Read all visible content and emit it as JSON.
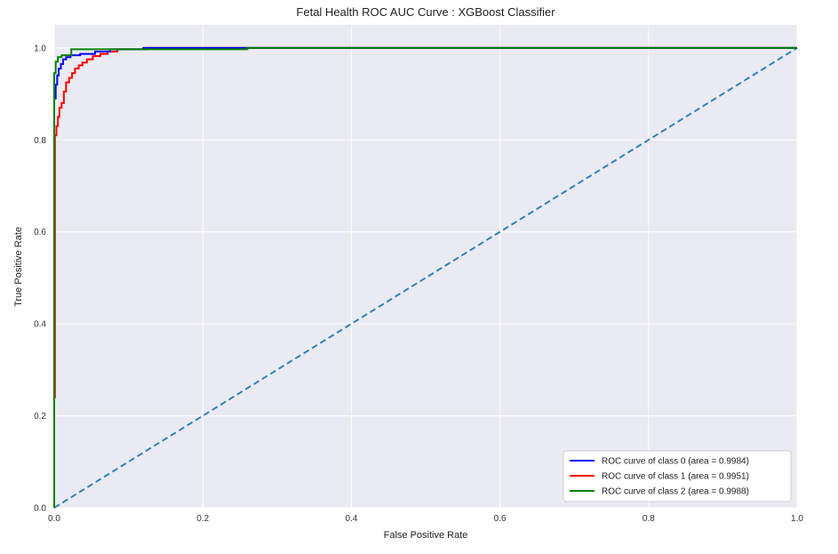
{
  "chart_data": {
    "type": "line",
    "title": "Fetal Health ROC AUC Curve : XGBoost Classifier",
    "xlabel": "False Positive Rate",
    "ylabel": "True Positive Rate",
    "xlim": [
      0.0,
      1.0
    ],
    "ylim": [
      0.0,
      1.05
    ],
    "x_ticks": [
      0.0,
      0.2,
      0.4,
      0.6,
      0.8,
      1.0
    ],
    "x_tick_labels": [
      "0.0",
      "0.2",
      "0.4",
      "0.6",
      "0.8",
      "1.0"
    ],
    "y_ticks": [
      0.0,
      0.2,
      0.4,
      0.6,
      0.8,
      1.0
    ],
    "y_tick_labels": [
      "0.0",
      "0.2",
      "0.4",
      "0.6",
      "0.8",
      "1.0"
    ],
    "grid": true,
    "background": "#eaeaf2",
    "legend_position": "lower-right",
    "series": [
      {
        "name": "ROC curve of class 0 (area = 0.9984)",
        "color": "#0000ff",
        "style": "solid",
        "x": [
          0.0,
          0.0,
          0.002,
          0.002,
          0.004,
          0.004,
          0.006,
          0.006,
          0.009,
          0.009,
          0.012,
          0.012,
          0.016,
          0.016,
          0.022,
          0.022,
          0.035,
          0.035,
          0.055,
          0.055,
          0.075,
          0.075,
          0.12,
          0.12,
          1.0
        ],
        "y": [
          0.0,
          0.89,
          0.89,
          0.92,
          0.92,
          0.94,
          0.94,
          0.955,
          0.955,
          0.965,
          0.965,
          0.975,
          0.975,
          0.98,
          0.98,
          0.984,
          0.984,
          0.987,
          0.987,
          0.992,
          0.992,
          0.997,
          0.997,
          1.0,
          1.0
        ]
      },
      {
        "name": "ROC curve of class 1 (area = 0.9951)",
        "color": "#ff0000",
        "style": "solid",
        "x": [
          0.0,
          0.0,
          0.001,
          0.001,
          0.003,
          0.003,
          0.005,
          0.005,
          0.007,
          0.007,
          0.01,
          0.01,
          0.013,
          0.013,
          0.016,
          0.016,
          0.02,
          0.02,
          0.024,
          0.024,
          0.028,
          0.028,
          0.033,
          0.033,
          0.038,
          0.038,
          0.044,
          0.044,
          0.052,
          0.052,
          0.062,
          0.062,
          0.072,
          0.072,
          0.085,
          0.085,
          0.125,
          0.125,
          1.0
        ],
        "y": [
          0.0,
          0.24,
          0.24,
          0.81,
          0.81,
          0.83,
          0.83,
          0.85,
          0.85,
          0.87,
          0.87,
          0.88,
          0.88,
          0.905,
          0.905,
          0.925,
          0.925,
          0.935,
          0.935,
          0.945,
          0.945,
          0.955,
          0.955,
          0.962,
          0.962,
          0.968,
          0.968,
          0.975,
          0.975,
          0.982,
          0.982,
          0.987,
          0.987,
          0.992,
          0.992,
          0.997,
          0.997,
          1.0,
          1.0
        ]
      },
      {
        "name": "ROC curve of class 2 (area = 0.9988)",
        "color": "#008000",
        "style": "solid",
        "x": [
          0.0,
          0.0,
          0.002,
          0.002,
          0.005,
          0.005,
          0.01,
          0.01,
          0.023,
          0.023,
          0.26,
          0.26,
          1.0
        ],
        "y": [
          0.0,
          0.945,
          0.945,
          0.97,
          0.97,
          0.98,
          0.98,
          0.984,
          0.984,
          0.997,
          0.997,
          1.0,
          1.0
        ]
      },
      {
        "color": "#3182bd",
        "style": "dashed",
        "x": [
          0.0,
          1.0
        ],
        "y": [
          0.0,
          1.0
        ]
      }
    ]
  }
}
